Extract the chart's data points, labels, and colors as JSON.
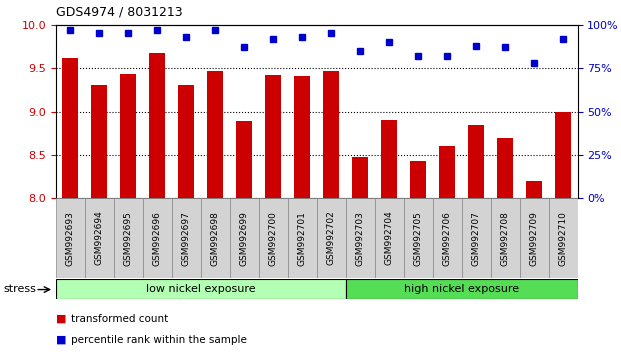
{
  "title": "GDS4974 / 8031213",
  "samples": [
    "GSM992693",
    "GSM992694",
    "GSM992695",
    "GSM992696",
    "GSM992697",
    "GSM992698",
    "GSM992699",
    "GSM992700",
    "GSM992701",
    "GSM992702",
    "GSM992703",
    "GSM992704",
    "GSM992705",
    "GSM992706",
    "GSM992707",
    "GSM992708",
    "GSM992709",
    "GSM992710"
  ],
  "bar_values": [
    9.62,
    9.3,
    9.43,
    9.68,
    9.3,
    9.47,
    8.89,
    9.42,
    9.41,
    9.47,
    8.47,
    8.9,
    8.43,
    8.6,
    8.84,
    8.7,
    8.2,
    8.99
  ],
  "dot_values": [
    97,
    95,
    95,
    97,
    93,
    97,
    87,
    92,
    93,
    95,
    85,
    90,
    82,
    82,
    88,
    87,
    78,
    92
  ],
  "bar_color": "#cc0000",
  "dot_color": "#0000cc",
  "ylim_left": [
    8.0,
    10.0
  ],
  "ylim_right": [
    0,
    100
  ],
  "yticks_left": [
    8.0,
    8.5,
    9.0,
    9.5,
    10.0
  ],
  "ytick_labels_right": [
    "0%",
    "25%",
    "50%",
    "75%",
    "100%"
  ],
  "group1_label": "low nickel exposure",
  "group2_label": "high nickel exposure",
  "group1_count": 10,
  "stress_label": "stress",
  "legend_bar": "transformed count",
  "legend_dot": "percentile rank within the sample",
  "group1_color": "#b3ffb3",
  "group2_color": "#55dd55",
  "xticklabel_bg": "#d3d3d3",
  "xticklabel_border": "#888888"
}
